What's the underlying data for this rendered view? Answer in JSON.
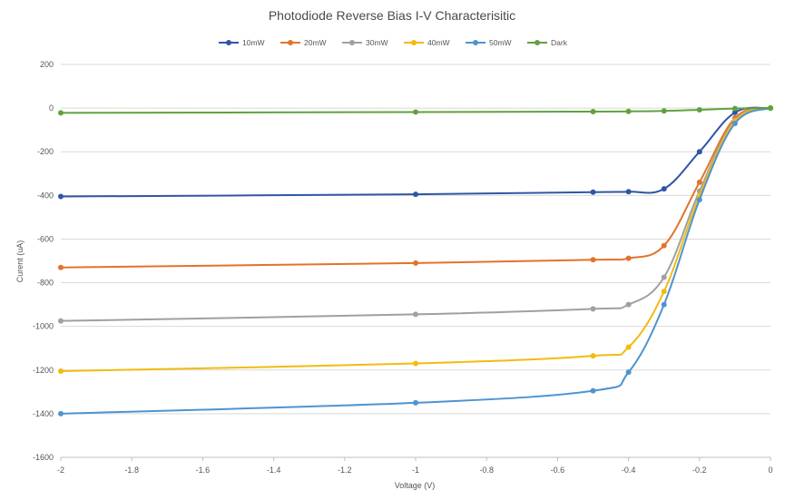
{
  "chart_data": {
    "type": "line",
    "title": "Photodiode Reverse Bias  I-V Characterisitic",
    "xlabel": "Voltage (V)",
    "ylabel": "Curent (uA)",
    "xlim": [
      -2,
      0
    ],
    "ylim": [
      -1600,
      200
    ],
    "x_ticks": [
      "-2",
      "-1.8",
      "-1.6",
      "-1.4",
      "-1.2",
      "-1",
      "-0.8",
      "-0.6",
      "-0.4",
      "-0.2",
      "0"
    ],
    "y_ticks": [
      "200",
      "0",
      "-200",
      "-400",
      "-600",
      "-800",
      "-1000",
      "-1200",
      "-1400",
      "-1600"
    ],
    "grid": "horizontal",
    "legend_position": "top",
    "x": [
      -2,
      -1,
      -0.5,
      -0.4,
      -0.3,
      -0.2,
      -0.1,
      0
    ],
    "series": [
      {
        "name": "10mW",
        "color": "#2f56a5",
        "values": [
          -405,
          -395,
          -385,
          -383,
          -370,
          -200,
          -20,
          0
        ]
      },
      {
        "name": "20mW",
        "color": "#e2732a",
        "values": [
          -730,
          -710,
          -695,
          -688,
          -630,
          -340,
          -45,
          0
        ]
      },
      {
        "name": "30mW",
        "color": "#a0a0a0",
        "values": [
          -975,
          -945,
          -920,
          -900,
          -775,
          -380,
          -55,
          0
        ]
      },
      {
        "name": "40mW",
        "color": "#f2bb12",
        "values": [
          -1205,
          -1170,
          -1135,
          -1095,
          -840,
          -400,
          -60,
          0
        ]
      },
      {
        "name": "50mW",
        "color": "#4f93d0",
        "values": [
          -1400,
          -1350,
          -1295,
          -1210,
          -900,
          -420,
          -70,
          0
        ]
      },
      {
        "name": "Dark",
        "color": "#5fa23c",
        "values": [
          -22,
          -18,
          -16,
          -15,
          -13,
          -8,
          -2,
          0
        ]
      }
    ]
  }
}
